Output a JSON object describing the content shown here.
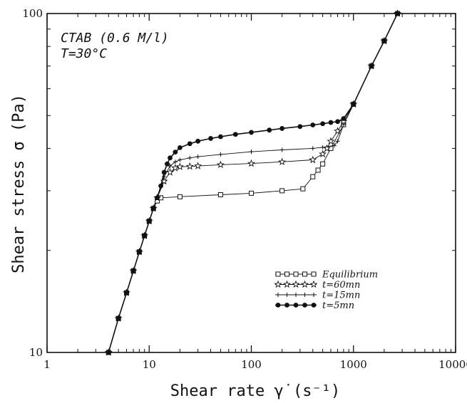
{
  "chart_data": {
    "type": "line",
    "xscale": "log",
    "yscale": "log",
    "xlim": [
      1,
      10000
    ],
    "ylim": [
      10,
      100
    ],
    "xlabel": "Shear rate γ̇ (s⁻¹)",
    "ylabel": "Shear stress σ (Pa)",
    "x_ticks": [
      "1",
      "10",
      "100",
      "1000",
      "10000"
    ],
    "y_ticks": [
      "10",
      "100"
    ],
    "annotations": [
      "CTAB (0.6 M/l)",
      "T=30°C"
    ],
    "grid": false,
    "legend_position": "lower-right",
    "series": [
      {
        "name": "Equilibrium",
        "marker": "square",
        "x": [
          4,
          5,
          6,
          7,
          8,
          9,
          10,
          11,
          12,
          13,
          20,
          50,
          100,
          200,
          320,
          400,
          450,
          500,
          600,
          800,
          1000,
          1500,
          2000,
          2700
        ],
        "y": [
          10,
          12.6,
          15,
          17.4,
          19.8,
          22.1,
          24.4,
          26.6,
          28,
          28.6,
          28.8,
          29.2,
          29.5,
          30,
          30.4,
          33,
          34.5,
          36,
          40,
          47,
          54,
          70,
          83,
          100
        ]
      },
      {
        "name": "t=60mn",
        "marker": "star",
        "x": [
          4,
          5,
          6,
          7,
          8,
          9,
          10,
          11,
          12,
          14,
          16,
          18,
          20,
          25,
          30,
          50,
          100,
          200,
          400,
          500,
          550,
          600,
          700,
          800,
          1000,
          1500,
          2000,
          2700
        ],
        "y": [
          10,
          12.6,
          15,
          17.4,
          19.8,
          22.1,
          24.4,
          26.6,
          28.6,
          32,
          34,
          35,
          35.3,
          35.4,
          35.5,
          35.8,
          36.1,
          36.5,
          37,
          38.5,
          40,
          42,
          45,
          48,
          54,
          70,
          83,
          100
        ]
      },
      {
        "name": "t=15mn",
        "marker": "plus",
        "x": [
          4,
          5,
          6,
          7,
          8,
          9,
          10,
          11,
          12,
          14,
          16,
          18,
          20,
          25,
          30,
          50,
          100,
          200,
          400,
          500,
          650,
          700,
          800,
          1000,
          1500,
          2000,
          2700
        ],
        "y": [
          10,
          12.6,
          15,
          17.4,
          19.8,
          22.1,
          24.4,
          26.6,
          28.6,
          33,
          35.5,
          36.5,
          37,
          37.5,
          37.8,
          38.4,
          39.1,
          39.6,
          40,
          40.3,
          40.8,
          42,
          47,
          54,
          70,
          83,
          100
        ]
      },
      {
        "name": "t=5mn",
        "marker": "dot",
        "x": [
          4,
          5,
          6,
          7,
          8,
          9,
          10,
          11,
          12,
          13,
          14,
          15,
          16,
          18,
          20,
          25,
          30,
          40,
          50,
          70,
          100,
          150,
          200,
          300,
          400,
          500,
          600,
          700,
          800,
          1000,
          1500,
          2000,
          2700
        ],
        "y": [
          10,
          12.6,
          15,
          17.4,
          19.8,
          22.1,
          24.4,
          26.6,
          28.6,
          31,
          34,
          36,
          37.5,
          39,
          40.2,
          41.3,
          42,
          42.8,
          43.3,
          44,
          44.6,
          45.3,
          45.8,
          46.4,
          46.9,
          47.3,
          47.7,
          48,
          49,
          54,
          70,
          83,
          100
        ]
      }
    ]
  }
}
